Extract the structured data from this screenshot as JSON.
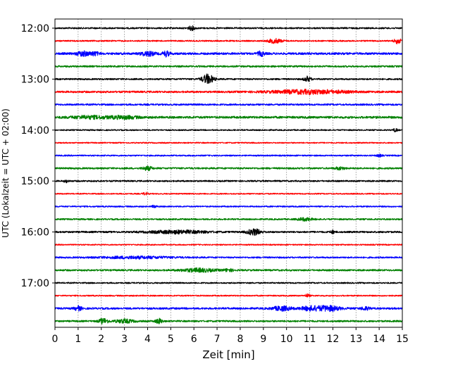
{
  "chart_data": {
    "type": "line",
    "chart_kind": "helicorder",
    "xlabel": "Zeit  [min]",
    "ylabel": "UTC (Lokalzeit = UTC + 02:00)",
    "xlim": [
      0,
      15
    ],
    "x_ticks": [
      "0",
      "1",
      "2",
      "3",
      "4",
      "5",
      "6",
      "7",
      "8",
      "9",
      "10",
      "11",
      "12",
      "13",
      "14",
      "15"
    ],
    "y_ticks": [
      "12:00",
      "13:00",
      "14:00",
      "15:00",
      "16:00",
      "17:00"
    ],
    "grid": "vertical dotted at each minute",
    "trace_minutes": 15,
    "trace_colors": [
      "#000000",
      "#ff0000",
      "#0000ff",
      "#008000"
    ],
    "traces": [
      {
        "start": "12:00",
        "noise": 0.18,
        "events": [
          {
            "t": 5.9,
            "a": 0.45,
            "d": 0.15
          }
        ]
      },
      {
        "start": "12:15",
        "noise": 0.16,
        "events": [
          {
            "t": 9.5,
            "a": 0.5,
            "d": 0.3
          },
          {
            "t": 14.8,
            "a": 0.6,
            "d": 0.15
          }
        ]
      },
      {
        "start": "12:30",
        "noise": 0.25,
        "events": [
          {
            "t": 1.2,
            "a": 0.55,
            "d": 0.25
          },
          {
            "t": 1.7,
            "a": 0.4,
            "d": 0.2
          },
          {
            "t": 4.0,
            "a": 0.5,
            "d": 0.3
          },
          {
            "t": 4.8,
            "a": 0.6,
            "d": 0.15
          },
          {
            "t": 8.9,
            "a": 0.5,
            "d": 0.15
          }
        ]
      },
      {
        "start": "12:45",
        "noise": 0.2,
        "events": []
      },
      {
        "start": "13:00",
        "noise": 0.18,
        "events": [
          {
            "t": 6.6,
            "a": 1.1,
            "d": 0.25
          },
          {
            "t": 10.9,
            "a": 0.6,
            "d": 0.15
          }
        ]
      },
      {
        "start": "13:15",
        "noise": 0.22,
        "events": [
          {
            "t": 11.0,
            "a": 0.45,
            "d": 1.6
          }
        ]
      },
      {
        "start": "13:30",
        "noise": 0.2,
        "events": []
      },
      {
        "start": "13:45",
        "noise": 0.26,
        "events": [
          {
            "t": 1.5,
            "a": 0.3,
            "d": 0.8
          },
          {
            "t": 3.0,
            "a": 0.3,
            "d": 0.6
          }
        ]
      },
      {
        "start": "14:00",
        "noise": 0.15,
        "events": [
          {
            "t": 14.7,
            "a": 0.35,
            "d": 0.1
          }
        ]
      },
      {
        "start": "14:15",
        "noise": 0.14,
        "events": []
      },
      {
        "start": "14:30",
        "noise": 0.16,
        "events": [
          {
            "t": 14.0,
            "a": 0.3,
            "d": 0.1
          }
        ]
      },
      {
        "start": "14:45",
        "noise": 0.2,
        "events": [
          {
            "t": 4.0,
            "a": 0.45,
            "d": 0.2
          },
          {
            "t": 12.3,
            "a": 0.3,
            "d": 0.2
          }
        ]
      },
      {
        "start": "15:00",
        "noise": 0.18,
        "events": [
          {
            "t": 0.5,
            "a": 0.3,
            "d": 0.1
          }
        ]
      },
      {
        "start": "15:15",
        "noise": 0.14,
        "events": [
          {
            "t": 3.9,
            "a": 0.3,
            "d": 0.1
          }
        ]
      },
      {
        "start": "15:30",
        "noise": 0.16,
        "events": [
          {
            "t": 4.3,
            "a": 0.3,
            "d": 0.1
          }
        ]
      },
      {
        "start": "15:45",
        "noise": 0.18,
        "events": [
          {
            "t": 10.8,
            "a": 0.35,
            "d": 0.3
          }
        ]
      },
      {
        "start": "16:00",
        "noise": 0.2,
        "events": [
          {
            "t": 5.3,
            "a": 0.35,
            "d": 1.2
          },
          {
            "t": 8.6,
            "a": 0.7,
            "d": 0.3
          },
          {
            "t": 12.0,
            "a": 0.35,
            "d": 0.1
          }
        ]
      },
      {
        "start": "16:15",
        "noise": 0.14,
        "events": []
      },
      {
        "start": "16:30",
        "noise": 0.18,
        "events": [
          {
            "t": 3.5,
            "a": 0.25,
            "d": 1.5
          }
        ]
      },
      {
        "start": "16:45",
        "noise": 0.2,
        "events": [
          {
            "t": 6.2,
            "a": 0.4,
            "d": 0.7
          },
          {
            "t": 7.5,
            "a": 0.3,
            "d": 0.2
          }
        ]
      },
      {
        "start": "17:00",
        "noise": 0.16,
        "events": []
      },
      {
        "start": "17:15",
        "noise": 0.15,
        "events": [
          {
            "t": 10.9,
            "a": 0.35,
            "d": 0.1
          }
        ]
      },
      {
        "start": "17:30",
        "noise": 0.22,
        "events": [
          {
            "t": 1.0,
            "a": 0.5,
            "d": 0.15
          },
          {
            "t": 9.8,
            "a": 0.5,
            "d": 0.4
          },
          {
            "t": 11.0,
            "a": 0.45,
            "d": 0.4
          },
          {
            "t": 11.8,
            "a": 0.6,
            "d": 0.5
          },
          {
            "t": 13.4,
            "a": 0.35,
            "d": 0.2
          }
        ]
      },
      {
        "start": "17:45",
        "noise": 0.2,
        "events": [
          {
            "t": 2.1,
            "a": 0.6,
            "d": 0.2
          },
          {
            "t": 3.0,
            "a": 0.4,
            "d": 0.4
          },
          {
            "t": 4.5,
            "a": 0.55,
            "d": 0.15
          }
        ]
      }
    ]
  }
}
